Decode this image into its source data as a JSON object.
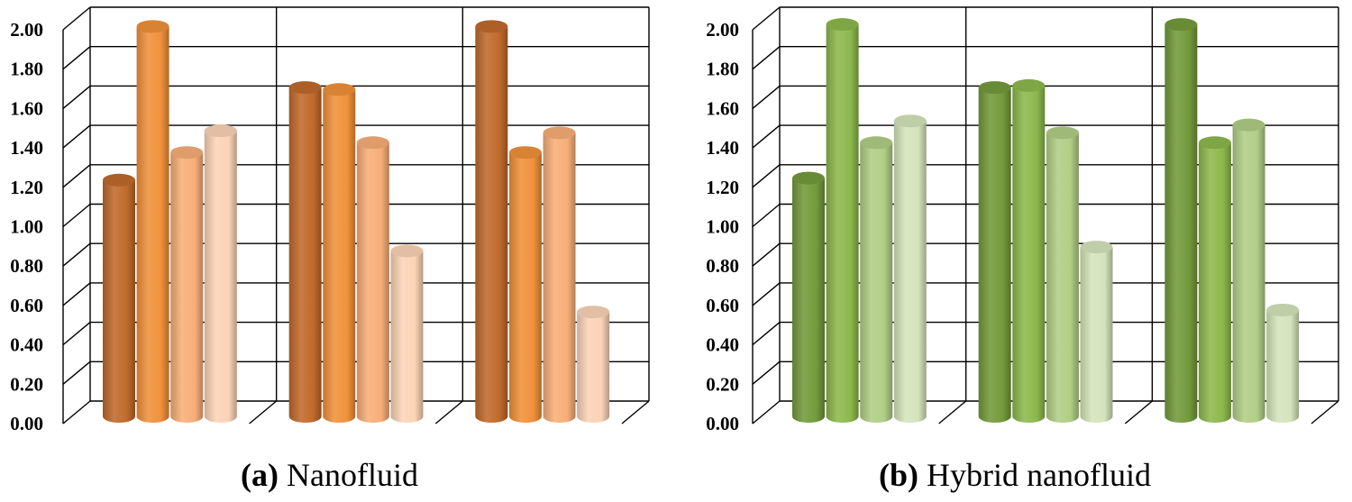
{
  "colors": {
    "nanofluid": [
      "#c06a2c",
      "#f0913a",
      "#f8ae78",
      "#fbd3b6"
    ],
    "hybrid": [
      "#739a3c",
      "#8db84d",
      "#b1ce86",
      "#d4e4bb"
    ],
    "grid": "#000000"
  },
  "chart_data": [
    {
      "id": "a",
      "type": "bar",
      "style": "3d-cylinder",
      "caption_letter": "(a)",
      "caption_text": "Nanofluid",
      "categories": [
        "",
        "",
        ""
      ],
      "series": [
        {
          "values": [
            1.2,
            1.67,
            1.98
          ]
        },
        {
          "values": [
            1.98,
            1.66,
            1.34
          ]
        },
        {
          "values": [
            1.34,
            1.39,
            1.44
          ]
        },
        {
          "values": [
            1.45,
            0.84,
            0.53
          ]
        }
      ],
      "ylim": [
        0,
        2.0
      ],
      "yticks": [
        "0.00",
        "0.20",
        "0.40",
        "0.60",
        "0.80",
        "1.00",
        "1.20",
        "1.40",
        "1.60",
        "1.80",
        "2.00"
      ],
      "xlabel": "",
      "ylabel": "",
      "grid": true,
      "legend": "none"
    },
    {
      "id": "b",
      "type": "bar",
      "style": "3d-cylinder",
      "caption_letter": "(b)",
      "caption_text": "Hybrid nanofluid",
      "categories": [
        "",
        "",
        ""
      ],
      "series": [
        {
          "values": [
            1.21,
            1.67,
            1.99
          ]
        },
        {
          "values": [
            1.99,
            1.68,
            1.39
          ]
        },
        {
          "values": [
            1.39,
            1.44,
            1.48
          ]
        },
        {
          "values": [
            1.5,
            0.86,
            0.54
          ]
        }
      ],
      "ylim": [
        0,
        2.0
      ],
      "yticks": [
        "0.00",
        "0.20",
        "0.40",
        "0.60",
        "0.80",
        "1.00",
        "1.20",
        "1.40",
        "1.60",
        "1.80",
        "2.00"
      ],
      "xlabel": "",
      "ylabel": "",
      "grid": true,
      "legend": "none"
    }
  ]
}
